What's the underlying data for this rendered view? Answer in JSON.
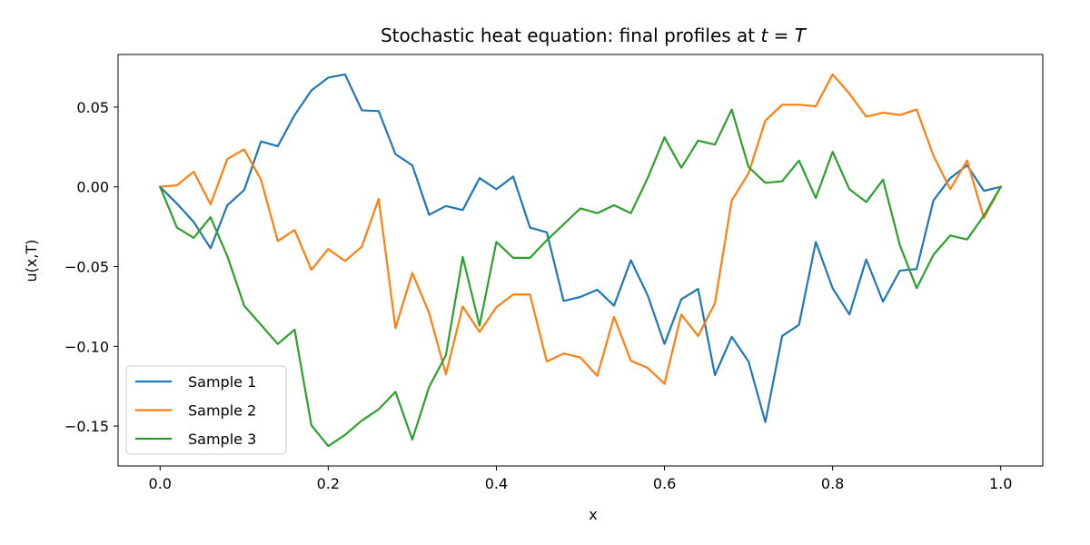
{
  "chart_data": {
    "type": "line",
    "title_prefix": "Stochastic heat equation: final profiles at ",
    "title_math": "t = T",
    "xlabel": "x",
    "ylabel": "u(x,T)",
    "xlim": [
      -0.05,
      1.05
    ],
    "ylim": [
      -0.175,
      0.083
    ],
    "xticks": [
      0.0,
      0.2,
      0.4,
      0.6,
      0.8,
      1.0
    ],
    "xtick_labels": [
      "0.0",
      "0.2",
      "0.4",
      "0.6",
      "0.8",
      "1.0"
    ],
    "yticks": [
      0.05,
      0.0,
      -0.05,
      -0.1,
      -0.15
    ],
    "ytick_labels": [
      "0.05",
      "0.00",
      "−0.05",
      "−0.10",
      "−0.15"
    ],
    "grid": false,
    "legend_position": "lower-left",
    "x": [
      0.0,
      0.02,
      0.04,
      0.06,
      0.08,
      0.1,
      0.12,
      0.14,
      0.16,
      0.18,
      0.2,
      0.22,
      0.24,
      0.26,
      0.28,
      0.3,
      0.32,
      0.34,
      0.36,
      0.38,
      0.4,
      0.42,
      0.44,
      0.46,
      0.48,
      0.5,
      0.52,
      0.54,
      0.56,
      0.58,
      0.6,
      0.62,
      0.64,
      0.66,
      0.68,
      0.7,
      0.72,
      0.74,
      0.76,
      0.78,
      0.8,
      0.82,
      0.84,
      0.86,
      0.88,
      0.9,
      0.92,
      0.94,
      0.96,
      0.98,
      1.0
    ],
    "series": [
      {
        "name": "Sample 1",
        "color": "#1f77b4",
        "values": [
          0.0,
          -0.0105,
          -0.022,
          -0.0385,
          -0.0115,
          -0.002,
          0.0285,
          0.0255,
          0.045,
          0.0605,
          0.0685,
          0.0705,
          0.048,
          0.0475,
          0.0205,
          0.0135,
          -0.0175,
          -0.012,
          -0.0145,
          0.0055,
          -0.0015,
          0.0065,
          -0.0255,
          -0.0285,
          -0.0715,
          -0.069,
          -0.0645,
          -0.0745,
          -0.046,
          -0.068,
          -0.0985,
          -0.0705,
          -0.064,
          -0.118,
          -0.094,
          -0.1095,
          -0.1475,
          -0.0935,
          -0.0865,
          -0.0345,
          -0.0635,
          -0.08,
          -0.0455,
          -0.072,
          -0.0525,
          -0.0515,
          -0.0085,
          0.0055,
          0.0135,
          -0.0025,
          0.0
        ]
      },
      {
        "name": "Sample 2",
        "color": "#ff7f0e",
        "values": [
          0.0,
          0.001,
          0.0095,
          -0.011,
          0.0175,
          0.0235,
          0.0045,
          -0.034,
          -0.027,
          -0.052,
          -0.039,
          -0.0465,
          -0.0375,
          -0.0075,
          -0.0885,
          -0.054,
          -0.079,
          -0.1175,
          -0.075,
          -0.091,
          -0.0755,
          -0.0675,
          -0.0675,
          -0.1095,
          -0.1045,
          -0.107,
          -0.1185,
          -0.0815,
          -0.109,
          -0.1135,
          -0.1235,
          -0.08,
          -0.0935,
          -0.073,
          -0.0085,
          0.0085,
          0.0415,
          0.0515,
          0.0515,
          0.0505,
          0.0705,
          0.0585,
          0.044,
          0.0465,
          0.045,
          0.0485,
          0.0195,
          -0.0015,
          0.0165,
          -0.0195,
          0.0
        ]
      },
      {
        "name": "Sample 3",
        "color": "#2ca02c",
        "values": [
          0.0,
          -0.0255,
          -0.032,
          -0.019,
          -0.0435,
          -0.0745,
          -0.0865,
          -0.0985,
          -0.0895,
          -0.1495,
          -0.1625,
          -0.1555,
          -0.1465,
          -0.1395,
          -0.1285,
          -0.1585,
          -0.1255,
          -0.1055,
          -0.044,
          -0.087,
          -0.0345,
          -0.0445,
          -0.0445,
          -0.0335,
          -0.0235,
          -0.0135,
          -0.0165,
          -0.0115,
          -0.0165,
          0.0055,
          0.031,
          0.012,
          0.029,
          0.0265,
          0.0485,
          0.0125,
          0.0025,
          0.0035,
          0.0165,
          -0.007,
          0.022,
          -0.0015,
          -0.0095,
          0.0045,
          -0.0365,
          -0.0635,
          -0.0425,
          -0.0305,
          -0.033,
          -0.018,
          0.0
        ]
      }
    ]
  }
}
